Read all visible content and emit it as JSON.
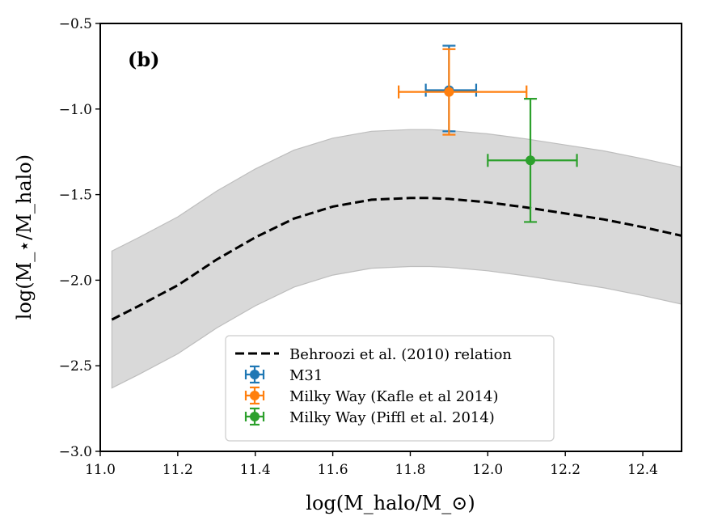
{
  "chart_data": {
    "type": "line",
    "panel_label": "(b)",
    "xlabel": "log(M_halo/M_⊙)",
    "ylabel": "log(M_⋆/M_halo)",
    "xlim": [
      11.0,
      12.5
    ],
    "ylim": [
      -3.0,
      -0.5
    ],
    "xticks": [
      11.0,
      11.2,
      11.4,
      11.6,
      11.8,
      12.0,
      12.2,
      12.4
    ],
    "xtick_labels": [
      "11.0",
      "11.2",
      "11.4",
      "11.6",
      "11.8",
      "12.0",
      "12.2",
      "12.4"
    ],
    "yticks": [
      -3.0,
      -2.5,
      -2.0,
      -1.5,
      -1.0,
      -0.5
    ],
    "ytick_labels": [
      "−3.0",
      "−2.5",
      "−2.0",
      "−1.5",
      "−1.0",
      "−0.5"
    ],
    "relation": {
      "name": "Behroozi et al. (2010) relation",
      "color": "#000000",
      "style": "dashed",
      "x": [
        11.03,
        11.1,
        11.2,
        11.3,
        11.4,
        11.5,
        11.6,
        11.7,
        11.8,
        11.85,
        11.9,
        12.0,
        12.1,
        12.2,
        12.3,
        12.4,
        12.5
      ],
      "y": [
        -2.23,
        -2.15,
        -2.03,
        -1.88,
        -1.75,
        -1.64,
        -1.57,
        -1.53,
        -1.52,
        -1.52,
        -1.525,
        -1.545,
        -1.575,
        -1.61,
        -1.645,
        -1.69,
        -1.74
      ],
      "band_halfwidth": 0.4,
      "band_color": "#d9d9d9"
    },
    "series": [
      {
        "name": "M31",
        "color": "#1f77b4",
        "x": 11.9,
        "y": -0.89,
        "xerr": [
          0.06,
          0.07
        ],
        "yerr": [
          0.24,
          0.26
        ]
      },
      {
        "name": "Milky Way (Kafle et al 2014)",
        "color": "#ff7f0e",
        "x": 11.9,
        "y": -0.9,
        "xerr": [
          0.13,
          0.2
        ],
        "yerr": [
          0.25,
          0.25
        ]
      },
      {
        "name": "Milky Way (Piffl et al. 2014)",
        "color": "#2ca02c",
        "x": 12.11,
        "y": -1.3,
        "xerr": [
          0.11,
          0.12
        ],
        "yerr": [
          0.36,
          0.36
        ]
      }
    ],
    "legend_position": "lower-center"
  }
}
